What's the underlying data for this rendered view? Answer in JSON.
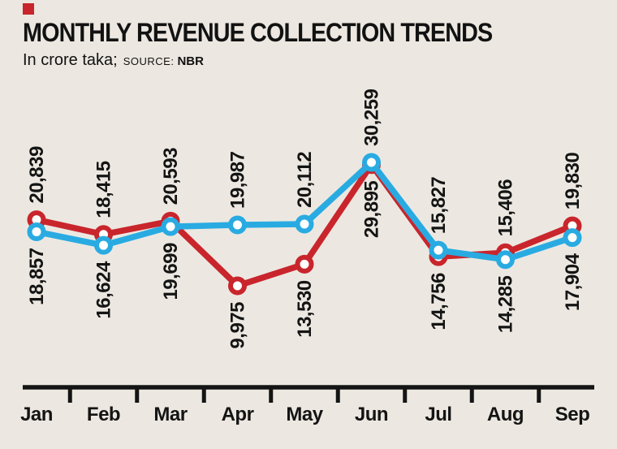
{
  "header": {
    "title": "MONTHLY REVENUE COLLECTION TRENDS",
    "unit_label": "In crore taka;",
    "source_label": "SOURCE:",
    "source_value": "NBR",
    "accent_color": "#C9252C"
  },
  "chart_data": {
    "type": "line",
    "title": "MONTHLY REVENUE COLLECTION TRENDS",
    "subtitle": "In crore taka; SOURCE: NBR",
    "categories": [
      "Jan",
      "Feb",
      "Mar",
      "Apr",
      "May",
      "Jun",
      "Jul",
      "Aug",
      "Sep"
    ],
    "series": [
      {
        "name": "red-series",
        "color": "#C9252C",
        "values": [
          20839,
          18415,
          20593,
          9975,
          13530,
          29895,
          14756,
          15406,
          19830
        ]
      },
      {
        "name": "blue-series",
        "color": "#29ABE2",
        "values": [
          18857,
          16624,
          19699,
          19987,
          20112,
          30259,
          15827,
          14285,
          17904
        ]
      }
    ],
    "xlabel": "",
    "ylabel": "",
    "ylim": [
      9975,
      30259
    ],
    "legend": "none",
    "grid": "off",
    "value_labels": "rotated-90, higher value above point, lower value below point",
    "marker": "white-filled circle with colored ring",
    "axis_color": "#141414",
    "text_color": "#141414",
    "background": "#ECE8E1"
  }
}
